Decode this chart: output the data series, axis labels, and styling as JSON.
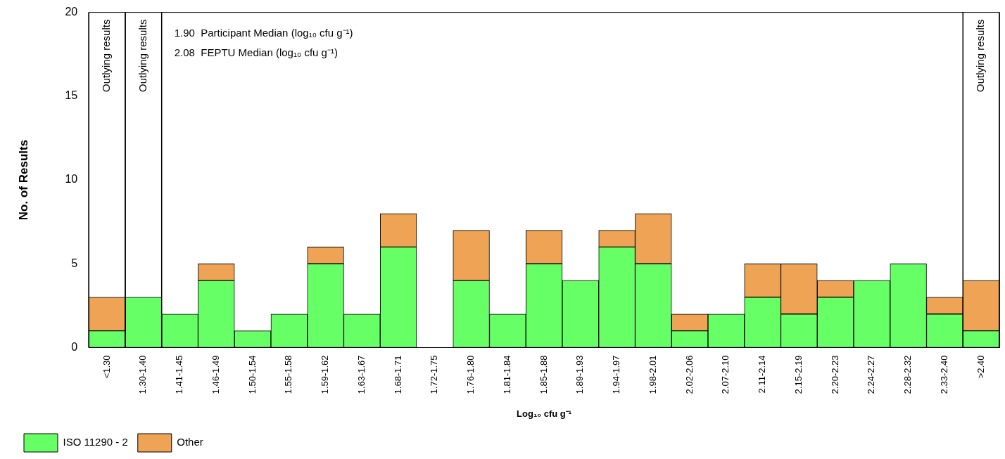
{
  "chart_data": {
    "type": "bar",
    "stacked": true,
    "xlabel": "Log₁₀ cfu g⁻¹",
    "ylabel": "No. of Results",
    "categories": [
      "<1.30",
      "1.30-1.40",
      "1.41-1.45",
      "1.46-1.49",
      "1.50-1.54",
      "1.55-1.58",
      "1.59-1.62",
      "1.63-1.67",
      "1.68-1.71",
      "1.72-1.75",
      "1.76-1.80",
      "1.81-1.84",
      "1.85-1.88",
      "1.89-1.93",
      "1.94-1.97",
      "1.98-2.01",
      "2.02-2.06",
      "2.07-2.10",
      "2.11-2.14",
      "2.15-2.19",
      "2.20-2.23",
      "2.24-2.27",
      "2.28-2.32",
      "2.33-2.40",
      ">2.40"
    ],
    "series": [
      {
        "name": "ISO 11290 - 2",
        "color": "#66ff66",
        "values": [
          1,
          3,
          2,
          4,
          1,
          2,
          5,
          2,
          6,
          0,
          4,
          2,
          5,
          4,
          6,
          5,
          1,
          2,
          3,
          2,
          3,
          4,
          5,
          2,
          1
        ]
      },
      {
        "name": "Other",
        "color": "#eea355",
        "values": [
          2,
          0,
          0,
          1,
          0,
          0,
          1,
          0,
          2,
          0,
          3,
          0,
          2,
          0,
          1,
          3,
          1,
          0,
          2,
          3,
          1,
          0,
          0,
          1,
          3
        ]
      }
    ],
    "ylim": [
      0,
      20
    ],
    "yticks": [
      0,
      5,
      10,
      15,
      20
    ],
    "grid": false,
    "legend": "bottom left",
    "annotations": [
      "1.90  Participant Median (log₁₀ cfu g⁻¹)",
      "2.08  FEPTU Median (log₁₀ cfu g⁻¹)",
      "Outlying results",
      "Outlying results",
      "Outlying results"
    ]
  }
}
